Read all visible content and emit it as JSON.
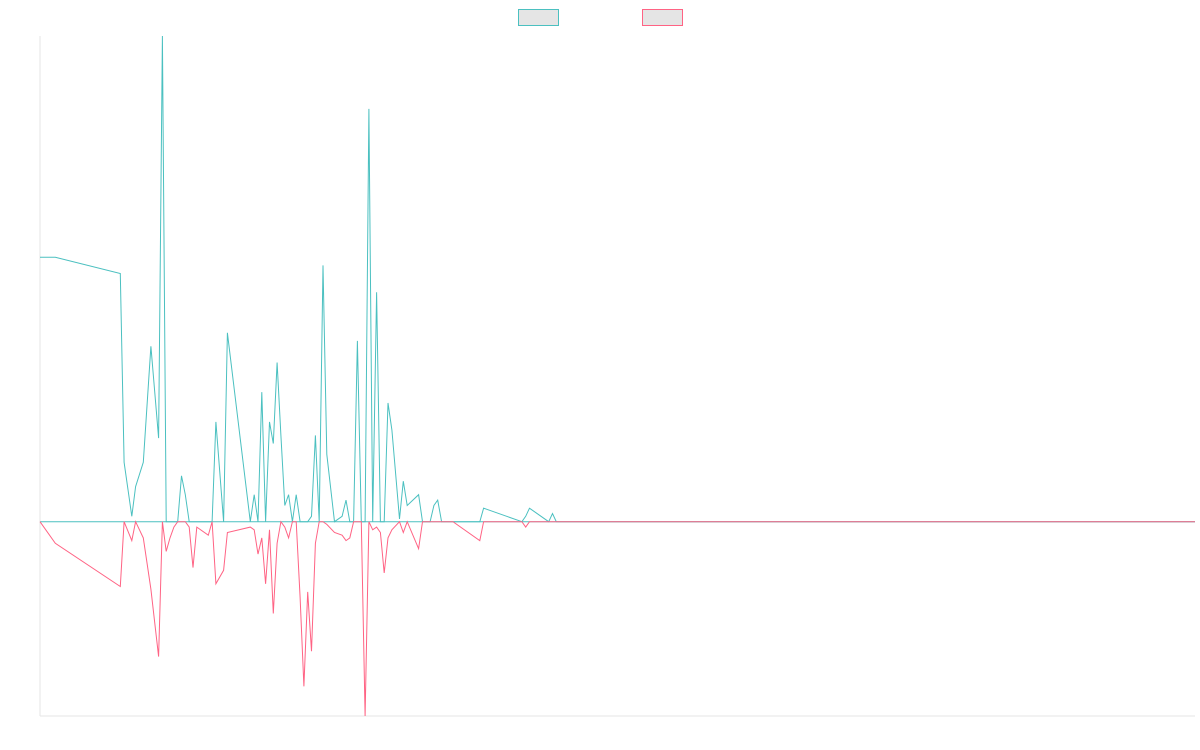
{
  "chart_data": {
    "type": "line",
    "title": "",
    "xlabel": "",
    "ylabel": "",
    "ylim": [
      -0.72,
      1.8
    ],
    "xlim": [
      0,
      302
    ],
    "grid": false,
    "legend_position": "top-center",
    "x": [
      0,
      4,
      21,
      22,
      24,
      25,
      27,
      29,
      31,
      32,
      33,
      34,
      35,
      36,
      37,
      38,
      39,
      40,
      41,
      44,
      45,
      46,
      48,
      49,
      55,
      56,
      57,
      58,
      59,
      60,
      61,
      62,
      63,
      64,
      65,
      66,
      67,
      68,
      69,
      70,
      71,
      72,
      73,
      74,
      75,
      77,
      79,
      80,
      81,
      82,
      83,
      84,
      85,
      86,
      87,
      88,
      89,
      90,
      91,
      92,
      94,
      95,
      96,
      99,
      100,
      101,
      102,
      103,
      104,
      105,
      106,
      107,
      108,
      115,
      116,
      126,
      127,
      128,
      133,
      134,
      135,
      302
    ],
    "series": [
      {
        "name": "",
        "color": "#4bc0c0",
        "values": [
          0.98,
          0.98,
          0.92,
          0.22,
          0.02,
          0.13,
          0.22,
          0.65,
          0.31,
          1.8,
          0,
          0,
          0,
          0,
          0.17,
          0.1,
          0,
          0,
          0,
          0,
          0,
          0.37,
          0,
          0.7,
          0,
          0.1,
          0,
          0.48,
          0,
          0.37,
          0.29,
          0.59,
          0.32,
          0.06,
          0.1,
          0,
          0.1,
          0,
          0,
          0,
          0.02,
          0.32,
          0,
          0.95,
          0.25,
          0,
          0.02,
          0.08,
          0,
          0,
          0.67,
          0,
          0,
          1.53,
          0,
          0.85,
          0,
          0,
          0.44,
          0.34,
          0.01,
          0.15,
          0.06,
          0.1,
          0,
          0,
          0,
          0.06,
          0.08,
          0,
          0,
          0,
          0,
          0,
          0.05,
          0,
          0.02,
          0.05,
          0,
          0.03,
          0,
          0
        ],
        "mirror": false
      },
      {
        "name": "",
        "color": "#ff6384",
        "values": [
          0,
          -0.08,
          -0.24,
          0,
          -0.07,
          0,
          -0.06,
          -0.25,
          -0.5,
          0,
          -0.11,
          -0.06,
          -0.02,
          0,
          0,
          0,
          -0.02,
          -0.17,
          -0.02,
          -0.05,
          0,
          -0.23,
          -0.18,
          -0.04,
          -0.02,
          -0.03,
          -0.12,
          -0.06,
          -0.23,
          -0.03,
          -0.34,
          -0.08,
          0,
          -0.02,
          -0.06,
          0,
          0,
          -0.28,
          -0.61,
          -0.26,
          -0.48,
          -0.08,
          0,
          0,
          -0.01,
          -0.04,
          -0.05,
          -0.07,
          -0.06,
          0,
          0,
          0,
          -0.72,
          0,
          -0.03,
          -0.02,
          -0.04,
          -0.19,
          -0.06,
          -0.03,
          0,
          -0.04,
          0,
          -0.1,
          0,
          0,
          0,
          0,
          0,
          0,
          0,
          0,
          0,
          -0.07,
          0,
          0,
          -0.02,
          0,
          0,
          0,
          0,
          0
        ]
      }
    ]
  },
  "legend": {
    "items": [
      {
        "name": "",
        "color": "#4bc0c0"
      },
      {
        "name": "",
        "color": "#ff6384"
      }
    ]
  }
}
